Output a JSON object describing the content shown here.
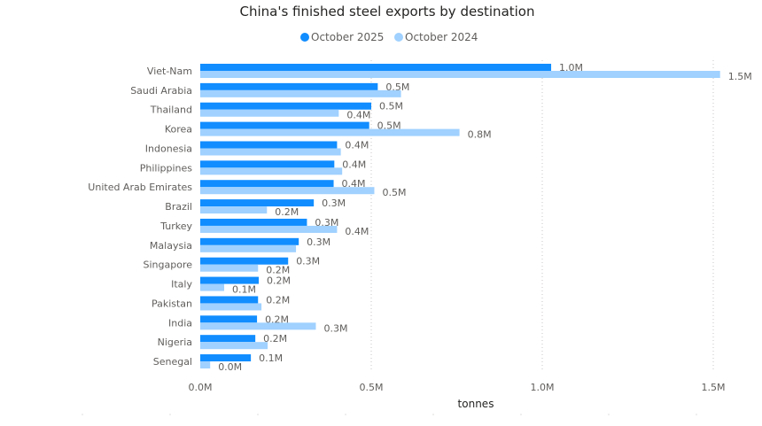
{
  "chart_data": {
    "type": "bar",
    "orientation": "horizontal",
    "title": "China's finished steel exports by destination",
    "xlabel": "tonnes",
    "ylabel": "",
    "xlim": [
      0,
      1.55
    ],
    "unit_suffix": "M",
    "grid": true,
    "legend_position": "top-center",
    "x_ticks": [
      0,
      0.5,
      1.0,
      1.5
    ],
    "x_tick_labels": [
      "0.0M",
      "0.5M",
      "1.0M",
      "1.5M"
    ],
    "categories": [
      "Viet-Nam",
      "Saudi Arabia",
      "Thailand",
      "Korea",
      "Indonesia",
      "Philippines",
      "United Arab Emirates",
      "Brazil",
      "Turkey",
      "Malaysia",
      "Singapore",
      "Italy",
      "Pakistan",
      "India",
      "Nigeria",
      "Senegal"
    ],
    "series": [
      {
        "name": "October 2025",
        "color": "#118DFF",
        "values": [
          1.026,
          0.519,
          0.5,
          0.494,
          0.4,
          0.392,
          0.39,
          0.332,
          0.312,
          0.288,
          0.257,
          0.171,
          0.169,
          0.166,
          0.161,
          0.148
        ],
        "labels": [
          "1.0M",
          "0.5M",
          "0.5M",
          "0.5M",
          "0.4M",
          "0.4M",
          "0.4M",
          "0.3M",
          "0.3M",
          "0.3M",
          "0.3M",
          "0.2M",
          "0.2M",
          "0.2M",
          "0.2M",
          "0.1M"
        ]
      },
      {
        "name": "October 2024",
        "color": "#A0D1FF",
        "values": [
          1.52,
          0.587,
          0.405,
          0.758,
          0.411,
          0.415,
          0.509,
          0.195,
          0.4,
          0.28,
          0.169,
          0.07,
          0.179,
          0.338,
          0.197,
          0.029
        ],
        "labels": [
          "1.5M",
          "",
          "0.4M",
          "0.8M",
          "",
          "",
          "0.5M",
          "0.2M",
          "0.4M",
          "",
          "0.2M",
          "0.1M",
          "",
          "0.3M",
          "",
          "0.0M"
        ]
      }
    ]
  }
}
